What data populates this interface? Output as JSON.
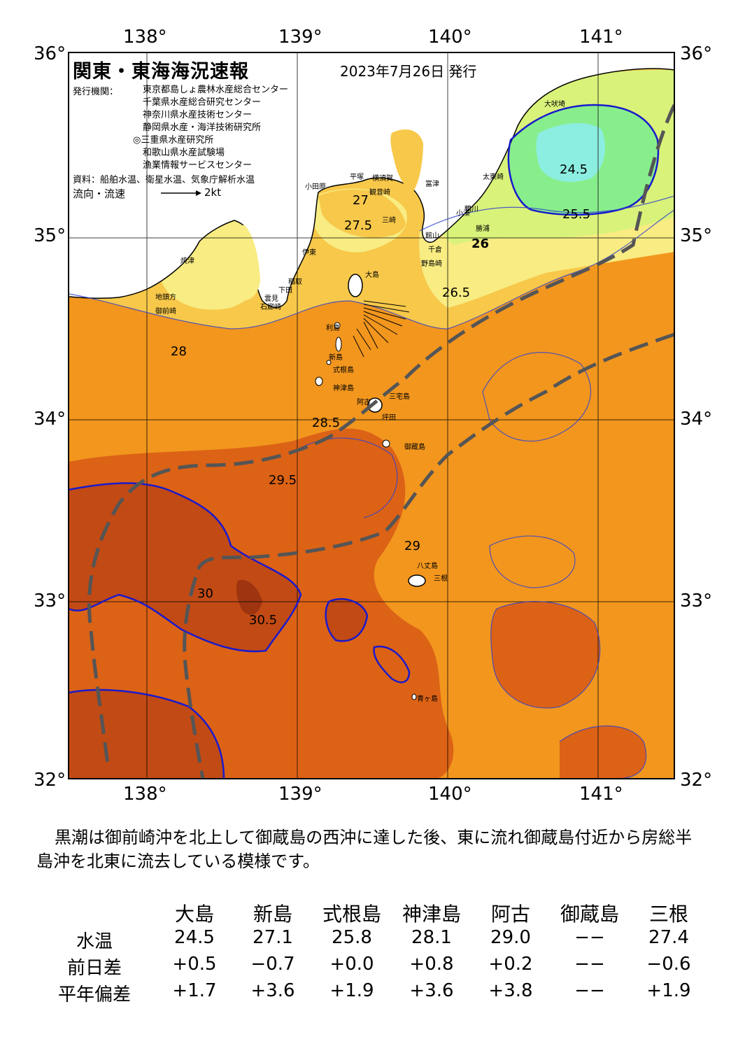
{
  "map": {
    "title": "関東・東海海況速報",
    "issue_date": "2023年7月26日 発行",
    "agencies_label": "発行機関：",
    "agencies": [
      "東京都島しょ農林水産総合センター",
      "千葉県水産総合研究センター",
      "神奈川県水産技術センター",
      "静岡県水産・海洋技術研究所",
      "◎三重県水産研究所",
      "和歌山県水産試験場",
      "漁業情報サービスセンター"
    ],
    "source": "資料：船舶水温、衛星水温、気象庁解析水温",
    "flow_legend": "流向・流速",
    "flow_scale": "2kt",
    "lon_labels": [
      "138°",
      "139°",
      "140°",
      "141°"
    ],
    "lat_labels": [
      "36°",
      "35°",
      "34°",
      "33°",
      "32°"
    ],
    "place_labels": [
      "大吠埼",
      "太東崎",
      "小湊",
      "野島崎",
      "館山",
      "千倉",
      "富津",
      "横須賀",
      "観音崎",
      "平塚",
      "小田原",
      "三崎",
      "伊東",
      "稲取",
      "下田",
      "石廊崎",
      "雲見",
      "焼津",
      "地頭方",
      "御前崎",
      "大島",
      "利島",
      "新島",
      "式根島",
      "神津島",
      "三宅島",
      "阿古",
      "坪田",
      "御蔵島",
      "八丈島",
      "三根",
      "青ヶ島",
      "勝浦",
      "鴨川"
    ],
    "isotherm_labels": [
      "24.5",
      "25.5",
      "26.5",
      "26",
      "27",
      "27.5",
      "28",
      "28.5",
      "29",
      "29.5",
      "30",
      "30.5"
    ],
    "colors": {
      "sea_30": "#c24a14",
      "sea_29_5": "#dc6216",
      "sea_28_5": "#f2961e",
      "sea_27_5": "#f7c84a",
      "sea_26": "#f8ec82",
      "sea_25_5": "#d9f27a",
      "sea_24_5": "#88ee8c",
      "sea_cold": "#8ceee0",
      "kuroshio": "#555555",
      "isotherm_main": "#1a1acc",
      "land": "#ffffff"
    }
  },
  "description": "黒潮は御前崎沖を北上して御蔵島の西沖に達した後、東に流れ御蔵島付近から房総半島沖を北東に流去している模様です。",
  "table": {
    "row_headers": [
      "水温",
      "前日差",
      "平年偏差"
    ],
    "columns": [
      "大島",
      "新島",
      "式根島",
      "神津島",
      "阿古",
      "御蔵島",
      "三根"
    ],
    "rows": [
      [
        "24.5",
        "27.1",
        "25.8",
        "28.1",
        "29.0",
        "−−",
        "27.4"
      ],
      [
        "+0.5",
        "−0.7",
        "+0.0",
        "+0.8",
        "+0.2",
        "−−",
        "−0.6"
      ],
      [
        "+1.7",
        "+3.6",
        "+1.9",
        "+3.6",
        "+3.8",
        "−−",
        "+1.9"
      ]
    ]
  }
}
